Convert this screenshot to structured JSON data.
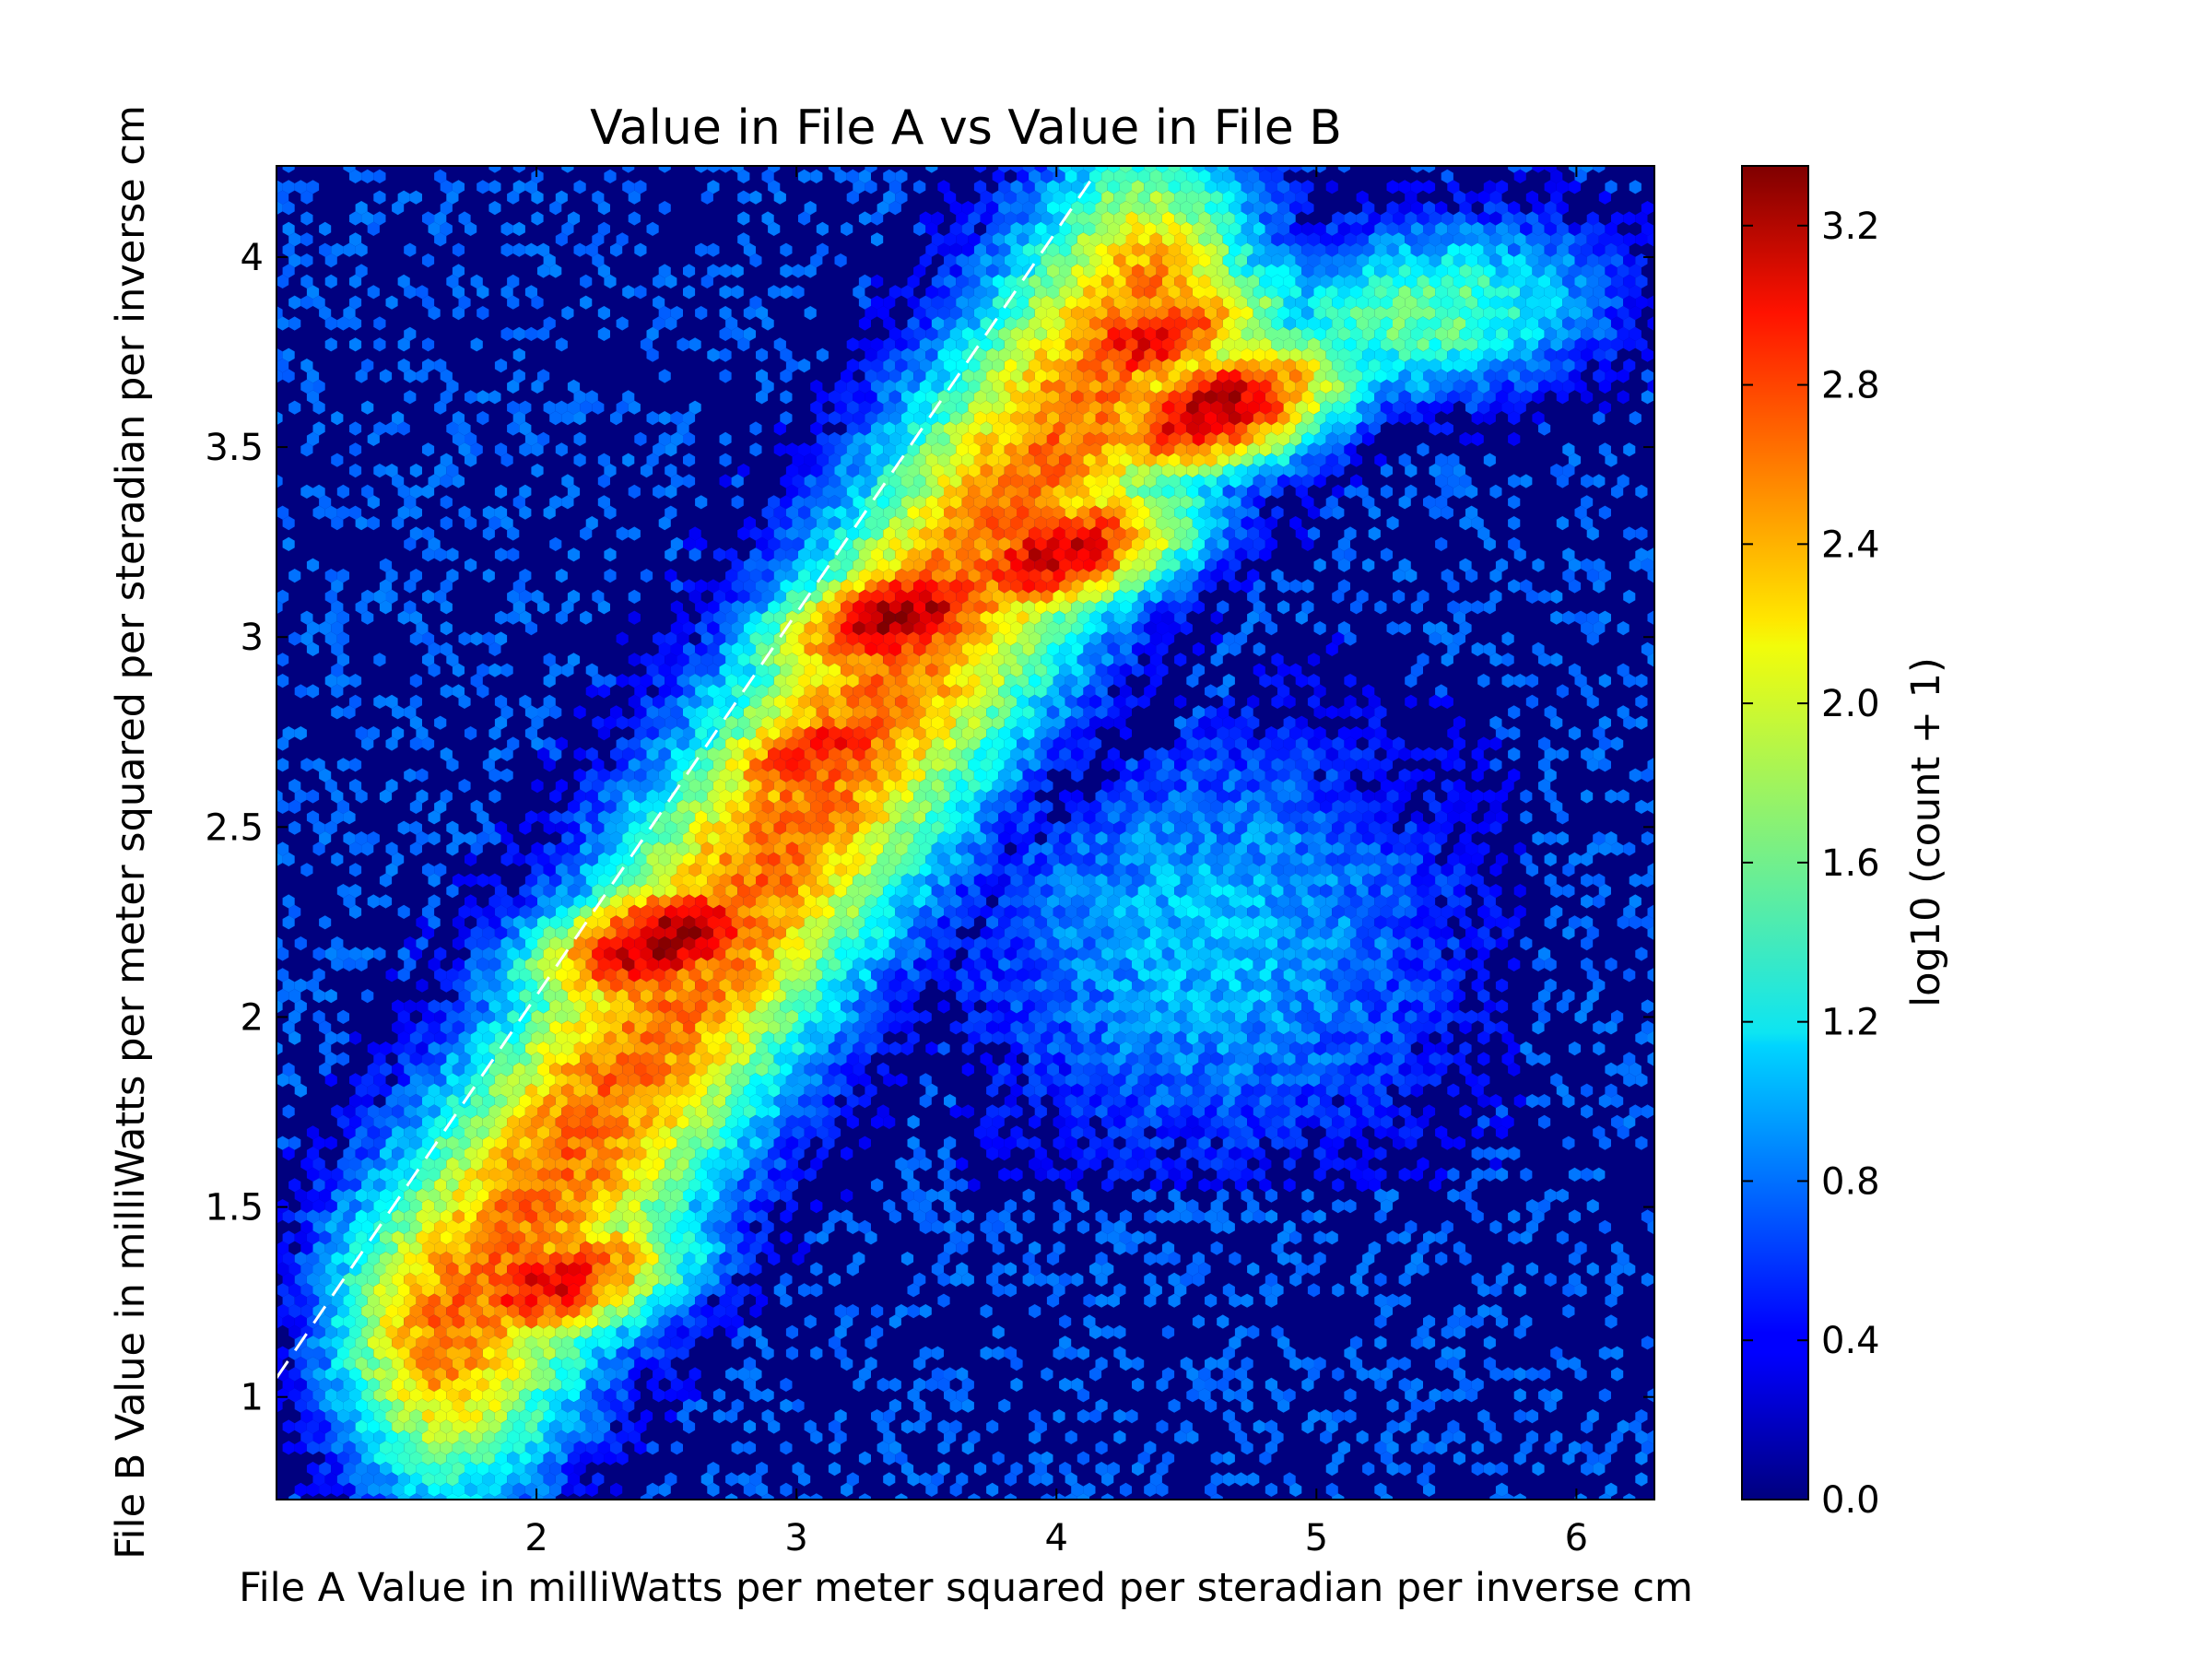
{
  "chart_data": {
    "type": "hexbin",
    "title": "Value in File A vs Value in File B",
    "xlabel": "File A Value in milliWatts per meter squared per steradian per inverse cm",
    "ylabel": "File B Value in milliWatts per meter squared per steradian per inverse cm",
    "xlim": [
      1.0,
      6.3
    ],
    "ylim": [
      0.73,
      4.24
    ],
    "x_ticks": [
      2,
      3,
      4,
      5,
      6
    ],
    "x_tick_labels": [
      "2",
      "3",
      "4",
      "5",
      "6"
    ],
    "y_ticks": [
      1,
      1.5,
      2,
      2.5,
      3,
      3.5,
      4
    ],
    "y_tick_labels": [
      "1",
      "1.5",
      "2",
      "2.5",
      "3",
      "3.5",
      "4"
    ],
    "colorbar": {
      "label": "log10 (count + 1)",
      "colormap": "jet",
      "range": [
        0.0,
        3.35
      ],
      "ticks": [
        0.0,
        0.4,
        0.8,
        1.2,
        1.6,
        2.0,
        2.4,
        2.8,
        3.2
      ],
      "tick_labels": [
        "0.0",
        "0.4",
        "0.8",
        "1.2",
        "1.6",
        "2.0",
        "2.4",
        "2.8",
        "3.2"
      ]
    },
    "background_color": "#00007f",
    "reference_line": {
      "style": "dashed",
      "color": "#ffffff",
      "points": [
        [
          1.0,
          1.05
        ],
        [
          4.15,
          4.22
        ]
      ]
    },
    "density_peaks": [
      {
        "x": 2.5,
        "y": 2.2,
        "value": 3.3
      },
      {
        "x": 3.4,
        "y": 3.05,
        "value": 3.25
      },
      {
        "x": 4.6,
        "y": 3.6,
        "value": 3.2
      },
      {
        "x": 4.0,
        "y": 3.22,
        "value": 3.1
      },
      {
        "x": 2.05,
        "y": 1.3,
        "value": 3.0
      },
      {
        "x": 4.35,
        "y": 3.78,
        "value": 2.95
      },
      {
        "x": 3.1,
        "y": 2.7,
        "value": 2.9
      }
    ],
    "grid": false
  }
}
